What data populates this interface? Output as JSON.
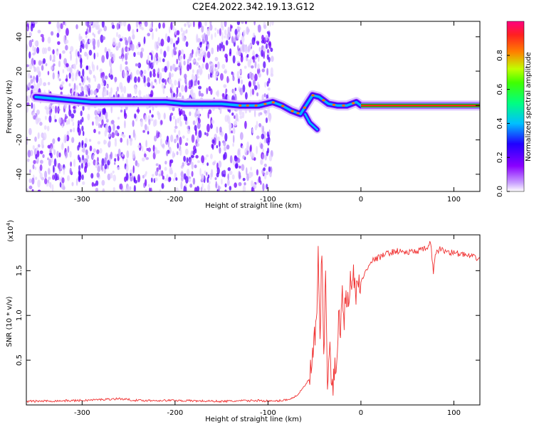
{
  "figure": {
    "title": "C2E4.2022.342.19.13.G12"
  },
  "chart_data": [
    {
      "type": "heatmap",
      "title": "",
      "xlabel": "Height of straight line (km)",
      "ylabel": "Frequency (Hz)",
      "xlim": [
        -360,
        128
      ],
      "ylim": [
        -50,
        49
      ],
      "xticks": [
        -300,
        -200,
        -100,
        0,
        100
      ],
      "xtick_labels": [
        "-300",
        "-200",
        "-100",
        "0",
        "100"
      ],
      "yticks": [
        -40,
        -20,
        0,
        20,
        40
      ],
      "ytick_labels": [
        "-40",
        "-20",
        "0",
        "20",
        "40"
      ],
      "grid": false,
      "colorbar": {
        "label": "Normalized spectral amplitude",
        "range": [
          0,
          1
        ],
        "ticks": [
          0.0,
          0.2,
          0.4,
          0.6,
          0.8
        ],
        "tick_labels": [
          "0.0",
          "0.2",
          "0.4",
          "0.6",
          "0.8"
        ],
        "colors": [
          "#ffffff",
          "#c9a0ff",
          "#8a00ff",
          "#2000ff",
          "#00c0ff",
          "#00ff60",
          "#c0ff00",
          "#ff8000",
          "#ff0040"
        ]
      },
      "ridge": [
        {
          "x": -350,
          "f": 5
        },
        {
          "x": -330,
          "f": 4
        },
        {
          "x": -310,
          "f": 3
        },
        {
          "x": -290,
          "f": 2
        },
        {
          "x": -270,
          "f": 2
        },
        {
          "x": -250,
          "f": 2
        },
        {
          "x": -230,
          "f": 2
        },
        {
          "x": -210,
          "f": 2
        },
        {
          "x": -190,
          "f": 1
        },
        {
          "x": -170,
          "f": 1
        },
        {
          "x": -150,
          "f": 1
        },
        {
          "x": -130,
          "f": 0
        },
        {
          "x": -110,
          "f": 0
        },
        {
          "x": -95,
          "f": 2
        },
        {
          "x": -85,
          "f": 0
        },
        {
          "x": -75,
          "f": -3
        },
        {
          "x": -65,
          "f": -5
        },
        {
          "x": -58,
          "f": 1
        },
        {
          "x": -52,
          "f": 6
        },
        {
          "x": -45,
          "f": 5
        },
        {
          "x": -35,
          "f": 1
        },
        {
          "x": -25,
          "f": 0
        },
        {
          "x": -15,
          "f": 0
        },
        {
          "x": -5,
          "f": 2
        },
        {
          "x": 0,
          "f": 0
        },
        {
          "x": 128,
          "f": 0
        }
      ],
      "ridge_branch": [
        {
          "x": -60,
          "f": -5
        },
        {
          "x": -55,
          "f": -10
        },
        {
          "x": -47,
          "f": -14
        }
      ],
      "noise_extent": [
        -360,
        -95
      ]
    },
    {
      "type": "line",
      "title": "",
      "xlabel": "Height of straight line (km)",
      "ylabel": "SNR (10 * v/v)",
      "scale_label": "(x10",
      "scale_exponent": "4",
      "scale_suffix": ")",
      "xlim": [
        -360,
        128
      ],
      "ylim": [
        0,
        1.9
      ],
      "xticks": [
        -300,
        -200,
        -100,
        0,
        100
      ],
      "xtick_labels": [
        "-300",
        "-200",
        "-100",
        "0",
        "100"
      ],
      "yticks": [
        0.5,
        1.0,
        1.5
      ],
      "ytick_labels": [
        "0.5",
        "1.0",
        "1.5"
      ],
      "grid": false,
      "series_color": "#f03030",
      "series": [
        {
          "x": [
            -360,
            -300,
            -260,
            -240,
            -200,
            -150,
            -110,
            -95,
            -85,
            -75,
            -70,
            -65,
            -60,
            -55,
            -52,
            -50,
            -48,
            -46,
            -44,
            -42,
            -40,
            -38,
            -36,
            -34,
            -32,
            -30,
            -28,
            -26,
            -24,
            -22,
            -20,
            -18,
            -16,
            -14,
            -12,
            -10,
            -8,
            -6,
            -4,
            -2,
            0,
            5,
            10,
            20,
            30,
            40,
            50,
            60,
            70,
            75,
            78,
            80,
            85,
            90,
            100,
            110,
            120,
            128
          ],
          "y": [
            0.04,
            0.05,
            0.07,
            0.05,
            0.05,
            0.04,
            0.05,
            0.04,
            0.05,
            0.07,
            0.1,
            0.15,
            0.22,
            0.3,
            0.5,
            0.7,
            0.9,
            1.6,
            0.6,
            1.8,
            0.5,
            1.4,
            0.3,
            0.7,
            0.25,
            0.2,
            0.35,
            0.6,
            1.0,
            0.8,
            1.2,
            1.0,
            1.35,
            1.1,
            1.4,
            1.25,
            1.5,
            1.2,
            1.3,
            1.4,
            1.35,
            1.5,
            1.6,
            1.65,
            1.7,
            1.72,
            1.7,
            1.72,
            1.74,
            1.82,
            1.45,
            1.7,
            1.74,
            1.72,
            1.7,
            1.68,
            1.65,
            1.64
          ]
        }
      ]
    }
  ]
}
